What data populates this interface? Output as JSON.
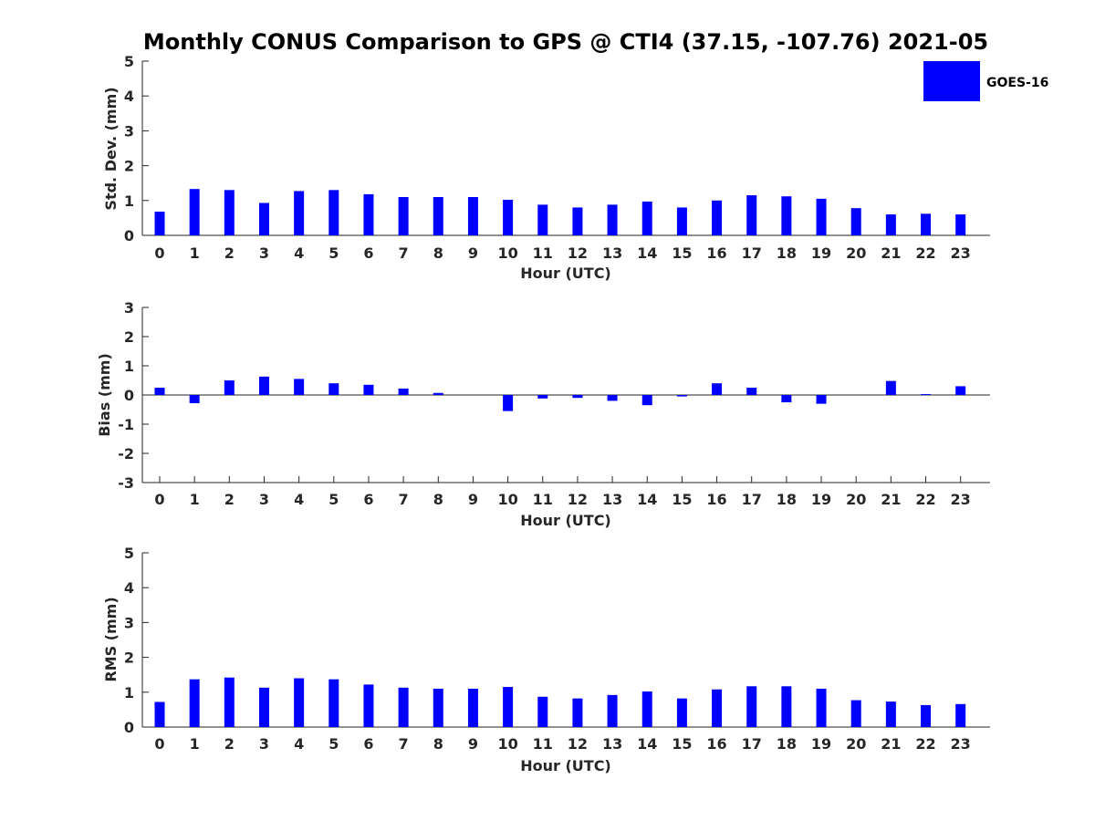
{
  "chart_data": {
    "title": "Monthly CONUS Comparison to GPS @ CTI4 (37.15, -107.76) 2021-05",
    "legend": {
      "label": "GOES-16",
      "color": "#0000ff",
      "placement": "top-right"
    },
    "categories": [
      "0",
      "1",
      "2",
      "3",
      "4",
      "5",
      "6",
      "7",
      "8",
      "9",
      "10",
      "11",
      "12",
      "13",
      "14",
      "15",
      "16",
      "17",
      "18",
      "19",
      "20",
      "21",
      "22",
      "23"
    ],
    "panels": [
      {
        "type": "bar",
        "name": "std-dev",
        "series": [
          {
            "name": "GOES-16",
            "values": [
              0.68,
              1.33,
              1.3,
              0.93,
              1.27,
              1.3,
              1.18,
              1.1,
              1.1,
              1.1,
              1.02,
              0.88,
              0.8,
              0.88,
              0.97,
              0.8,
              1.0,
              1.15,
              1.12,
              1.05,
              0.78,
              0.6,
              0.62,
              0.6
            ]
          }
        ],
        "xlabel": "Hour (UTC)",
        "ylabel": "Std. Dev. (mm)",
        "ylim": [
          0,
          5
        ],
        "yticks": [
          "0",
          "1",
          "2",
          "3",
          "4",
          "5"
        ]
      },
      {
        "type": "bar",
        "name": "bias",
        "series": [
          {
            "name": "GOES-16",
            "values": [
              0.25,
              -0.28,
              0.5,
              0.63,
              0.55,
              0.4,
              0.35,
              0.22,
              0.07,
              0.0,
              -0.55,
              -0.12,
              -0.1,
              -0.2,
              -0.35,
              -0.05,
              0.4,
              0.25,
              -0.25,
              -0.3,
              0.0,
              0.48,
              0.03,
              0.3
            ]
          }
        ],
        "xlabel": "Hour (UTC)",
        "ylabel": "Bias (mm)",
        "ylim": [
          -3,
          3
        ],
        "yticks": [
          "-3",
          "-2",
          "-1",
          "0",
          "1",
          "2",
          "3"
        ]
      },
      {
        "type": "bar",
        "name": "rms",
        "series": [
          {
            "name": "GOES-16",
            "values": [
              0.72,
              1.37,
              1.42,
              1.13,
              1.4,
              1.37,
              1.22,
              1.13,
              1.1,
              1.1,
              1.15,
              0.87,
              0.82,
              0.92,
              1.02,
              0.82,
              1.08,
              1.17,
              1.17,
              1.1,
              0.77,
              0.73,
              0.63,
              0.66
            ]
          }
        ],
        "xlabel": "Hour (UTC)",
        "ylabel": "RMS (mm)",
        "ylim": [
          0,
          5
        ],
        "yticks": [
          "0",
          "1",
          "2",
          "3",
          "4",
          "5"
        ]
      }
    ]
  }
}
